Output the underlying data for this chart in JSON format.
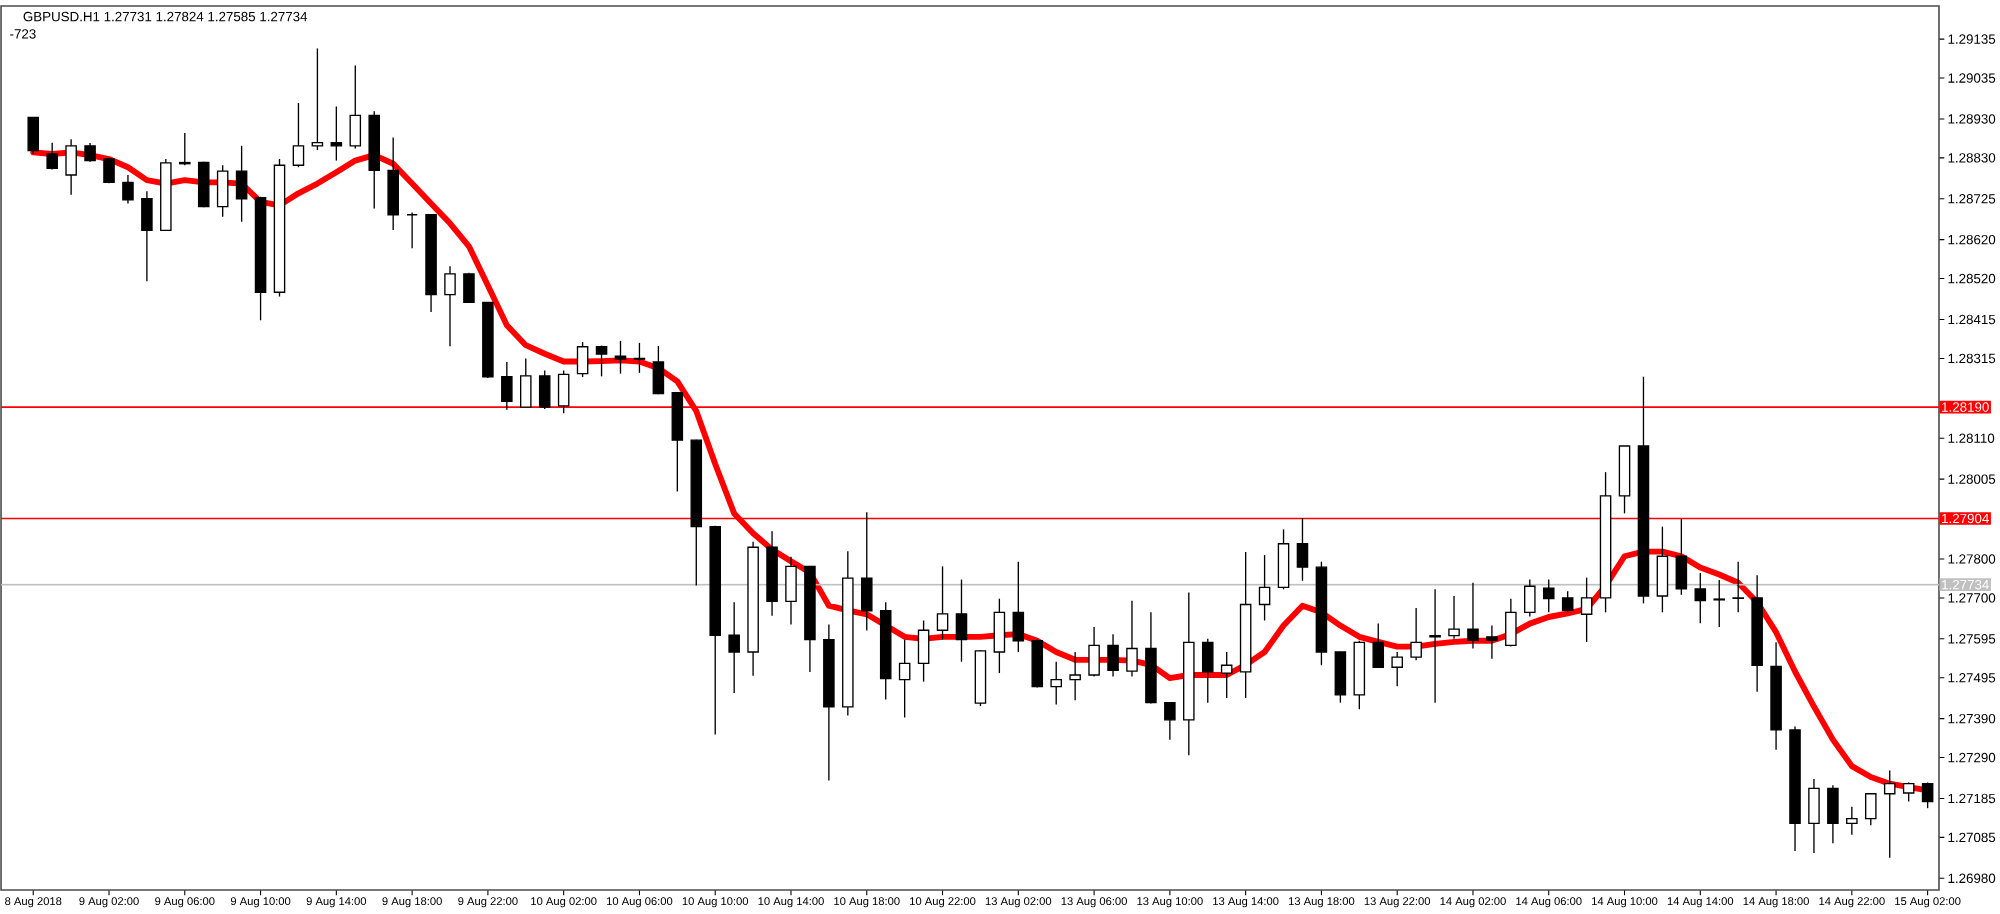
{
  "chart_data": {
    "type": "candlestick",
    "title": "GBPUSD.H1  1.27731 1.27824 1.27585 1.27734",
    "subtitle": "-723",
    "categories": [
      "8 Aug 2018",
      null,
      null,
      null,
      "9 Aug 02:00",
      null,
      null,
      null,
      "9 Aug 06:00",
      null,
      null,
      null,
      "9 Aug 10:00",
      null,
      null,
      null,
      "9 Aug 14:00",
      null,
      null,
      null,
      "9 Aug 18:00",
      null,
      null,
      null,
      "9 Aug 22:00",
      null,
      null,
      null,
      "10 Aug 02:00",
      null,
      null,
      null,
      "10 Aug 06:00",
      null,
      null,
      null,
      "10 Aug 10:00",
      null,
      null,
      null,
      "10 Aug 14:00",
      null,
      null,
      null,
      "10 Aug 18:00",
      null,
      null,
      null,
      "10 Aug 22:00",
      null,
      null,
      null,
      "13 Aug 02:00",
      null,
      null,
      null,
      "13 Aug 06:00",
      null,
      null,
      null,
      "13 Aug 10:00",
      null,
      null,
      null,
      "13 Aug 14:00",
      null,
      null,
      null,
      "13 Aug 18:00",
      null,
      null,
      null,
      "13 Aug 22:00",
      null,
      null,
      null,
      "14 Aug 02:00",
      null,
      null,
      null,
      "14 Aug 06:00",
      null,
      null,
      null,
      "14 Aug 10:00",
      null,
      null,
      null,
      "14 Aug 14:00",
      null,
      null,
      null,
      "14 Aug 18:00",
      null,
      null,
      null,
      "14 Aug 22:00",
      null,
      null,
      null,
      "15 Aug 02:00"
    ],
    "color": "#000000",
    "ohlc": [
      [
        1.28934,
        1.28934,
        1.2884,
        1.28849
      ],
      [
        1.2884,
        1.28869,
        1.288,
        1.28803
      ],
      [
        1.28786,
        1.28878,
        1.28735,
        1.28861
      ],
      [
        1.28861,
        1.28868,
        1.2882,
        1.28823
      ],
      [
        1.28827,
        1.2883,
        1.28765,
        1.28767
      ],
      [
        1.28767,
        1.28786,
        1.28713,
        1.28722
      ],
      [
        1.28725,
        1.28744,
        1.28513,
        1.28644
      ],
      [
        1.28644,
        1.28827,
        1.28642,
        1.28817
      ],
      [
        1.28818,
        1.28894,
        1.28811,
        1.28815
      ],
      [
        1.28818,
        1.2882,
        1.28703,
        1.28705
      ],
      [
        1.28705,
        1.28811,
        1.28679,
        1.28796
      ],
      [
        1.28796,
        1.28861,
        1.28666,
        1.28725
      ],
      [
        1.28728,
        1.2873,
        1.28413,
        1.28485
      ],
      [
        1.28485,
        1.28827,
        1.28474,
        1.28811
      ],
      [
        1.28811,
        1.28971,
        1.28806,
        1.28861
      ],
      [
        1.28861,
        1.29111,
        1.2885,
        1.28869
      ],
      [
        1.28869,
        1.28962,
        1.28823,
        1.28861
      ],
      [
        1.28861,
        1.29067,
        1.28854,
        1.28939
      ],
      [
        1.28939,
        1.2895,
        1.287,
        1.28798
      ],
      [
        1.28798,
        1.28882,
        1.28645,
        1.28684
      ],
      [
        1.28684,
        1.2869,
        1.28598,
        1.28684
      ],
      [
        1.28684,
        1.28686,
        1.28434,
        1.28479
      ],
      [
        1.28479,
        1.28552,
        1.28346,
        1.28532
      ],
      [
        1.28532,
        1.28535,
        1.28457,
        1.28459
      ],
      [
        1.28459,
        1.2846,
        1.28265,
        1.28268
      ],
      [
        1.28268,
        1.28306,
        1.28183,
        1.28205
      ],
      [
        1.2819,
        1.28315,
        1.2819,
        1.2827
      ],
      [
        1.2827,
        1.28284,
        1.28185,
        1.2819
      ],
      [
        1.28193,
        1.28284,
        1.28174,
        1.28274
      ],
      [
        1.28276,
        1.28357,
        1.28267,
        1.28345
      ],
      [
        1.28345,
        1.28348,
        1.28269,
        1.28326
      ],
      [
        1.28321,
        1.2836,
        1.28276,
        1.28313
      ],
      [
        1.28313,
        1.28355,
        1.28278,
        1.28315
      ],
      [
        1.28306,
        1.28347,
        1.28223,
        1.28225
      ],
      [
        1.28227,
        1.28228,
        1.27973,
        1.28105
      ],
      [
        1.28105,
        1.28106,
        1.27732,
        1.27883
      ],
      [
        1.27883,
        1.27885,
        1.27349,
        1.27604
      ],
      [
        1.27604,
        1.27689,
        1.27456,
        1.27561
      ],
      [
        1.27561,
        1.27844,
        1.275,
        1.2783
      ],
      [
        1.2783,
        1.27871,
        1.27654,
        1.27691
      ],
      [
        1.27691,
        1.27806,
        1.27632,
        1.27781
      ],
      [
        1.27781,
        1.27782,
        1.2751,
        1.27593
      ],
      [
        1.27593,
        1.27632,
        1.27231,
        1.2742
      ],
      [
        1.2742,
        1.2782,
        1.27398,
        1.27751
      ],
      [
        1.27751,
        1.2792,
        1.27616,
        1.27667
      ],
      [
        1.27667,
        1.27689,
        1.27439,
        1.27493
      ],
      [
        1.2749,
        1.27593,
        1.27393,
        1.27532
      ],
      [
        1.27532,
        1.27642,
        1.27485,
        1.27617
      ],
      [
        1.27617,
        1.27781,
        1.27593,
        1.27659
      ],
      [
        1.27659,
        1.27747,
        1.27536,
        1.27593
      ],
      [
        1.2743,
        1.27566,
        1.27422,
        1.27564
      ],
      [
        1.27561,
        1.27698,
        1.27507,
        1.27663
      ],
      [
        1.27663,
        1.27793,
        1.27561,
        1.2759
      ],
      [
        1.2759,
        1.27593,
        1.2747,
        1.27472
      ],
      [
        1.27472,
        1.27536,
        1.27426,
        1.2749
      ],
      [
        1.2749,
        1.27561,
        1.27437,
        1.27502
      ],
      [
        1.27502,
        1.27625,
        1.27498,
        1.27578
      ],
      [
        1.27578,
        1.27607,
        1.27498,
        1.27514
      ],
      [
        1.27512,
        1.27693,
        1.27498,
        1.2757
      ],
      [
        1.2757,
        1.27663,
        1.27429,
        1.27431
      ],
      [
        1.27431,
        1.27432,
        1.27336,
        1.27387
      ],
      [
        1.27387,
        1.27714,
        1.27296,
        1.27586
      ],
      [
        1.27586,
        1.27595,
        1.27431,
        1.2751
      ],
      [
        1.27507,
        1.27561,
        1.27443,
        1.27527
      ],
      [
        1.2751,
        1.27818,
        1.27443,
        1.27683
      ],
      [
        1.27683,
        1.2781,
        1.27642,
        1.27727
      ],
      [
        1.27727,
        1.27876,
        1.27722,
        1.27839
      ],
      [
        1.27839,
        1.27905,
        1.27744,
        1.27779
      ],
      [
        1.27779,
        1.27793,
        1.27527,
        1.27561
      ],
      [
        1.27561,
        1.27562,
        1.27431,
        1.27451
      ],
      [
        1.27451,
        1.2759,
        1.27414,
        1.27586
      ],
      [
        1.27586,
        1.27634,
        1.27521,
        1.27522
      ],
      [
        1.27522,
        1.27561,
        1.27473,
        1.27548
      ],
      [
        1.27548,
        1.27674,
        1.2754,
        1.27586
      ],
      [
        1.276,
        1.27722,
        1.27431,
        1.27603
      ],
      [
        1.27603,
        1.27705,
        1.27595,
        1.2762
      ],
      [
        1.2762,
        1.27739,
        1.2757,
        1.27591
      ],
      [
        1.276,
        1.27629,
        1.27544,
        1.27591
      ],
      [
        1.27578,
        1.27698,
        1.27575,
        1.27663
      ],
      [
        1.27663,
        1.27747,
        1.27652,
        1.2773
      ],
      [
        1.27725,
        1.27747,
        1.27663,
        1.27698
      ],
      [
        1.277,
        1.27717,
        1.27663,
        1.27668
      ],
      [
        1.27658,
        1.27752,
        1.27587,
        1.277
      ],
      [
        1.277,
        1.28023,
        1.27663,
        1.27962
      ],
      [
        1.27962,
        1.2809,
        1.27917,
        1.2809
      ],
      [
        1.2809,
        1.28268,
        1.27686,
        1.27705
      ],
      [
        1.27705,
        1.27883,
        1.27663,
        1.27807
      ],
      [
        1.27807,
        1.27903,
        1.27708,
        1.27723
      ],
      [
        1.27723,
        1.27764,
        1.27635,
        1.27693
      ],
      [
        1.27697,
        1.27746,
        1.27625,
        1.27695
      ],
      [
        1.27699,
        1.27793,
        1.27663,
        1.277
      ],
      [
        1.277,
        1.27758,
        1.27459,
        1.27527
      ],
      [
        1.27524,
        1.27586,
        1.2731,
        1.27361
      ],
      [
        1.27361,
        1.2737,
        1.2705,
        1.27121
      ],
      [
        1.27121,
        1.27235,
        1.27045,
        1.27211
      ],
      [
        1.27211,
        1.27219,
        1.2707,
        1.27121
      ],
      [
        1.27121,
        1.27164,
        1.27092,
        1.27133
      ],
      [
        1.27133,
        1.27199,
        1.27116,
        1.27197
      ],
      [
        1.27197,
        1.27257,
        1.27033,
        1.27223
      ],
      [
        1.27199,
        1.27226,
        1.27177,
        1.27223
      ],
      [
        1.27223,
        1.27226,
        1.2716,
        1.27177
      ]
    ],
    "series": [
      {
        "type": "line",
        "color": "#ff0000",
        "values": [
          1.28844,
          1.2884,
          1.28844,
          1.28837,
          1.28827,
          1.28806,
          1.28773,
          1.28764,
          1.28773,
          1.28767,
          1.28767,
          1.28764,
          1.28717,
          1.28708,
          1.28739,
          1.28764,
          1.28793,
          1.28823,
          1.28837,
          1.28815,
          1.28764,
          1.28713,
          1.28662,
          1.28603,
          1.28502,
          1.284,
          1.28349,
          1.28327,
          1.28307,
          1.28307,
          1.28308,
          1.2831,
          1.28307,
          1.2829,
          1.28256,
          1.2818,
          1.28044,
          1.27917,
          1.27866,
          1.27824,
          1.27794,
          1.27765,
          1.2768,
          1.27668,
          1.27658,
          1.27629,
          1.276,
          1.27595,
          1.276,
          1.276,
          1.276,
          1.27604,
          1.27607,
          1.2759,
          1.27561,
          1.27541,
          1.27541,
          1.27541,
          1.27539,
          1.27528,
          1.27494,
          1.27502,
          1.27502,
          1.27502,
          1.27528,
          1.27561,
          1.27629,
          1.2768,
          1.27663,
          1.27629,
          1.276,
          1.27587,
          1.27575,
          1.27575,
          1.27582,
          1.27587,
          1.2759,
          1.2759,
          1.27607,
          1.27634,
          1.27651,
          1.2766,
          1.27672,
          1.27731,
          1.27807,
          1.27819,
          1.27819,
          1.27807,
          1.27778,
          1.2776,
          1.27739,
          1.27689,
          1.27612,
          1.27511,
          1.27421,
          1.27336,
          1.27268,
          1.2724,
          1.27223,
          1.27214,
          1.27206
        ]
      }
    ],
    "ylim": [
      1.2695,
      1.2922
    ],
    "yticks": [
      1.29135,
      1.29035,
      {
        "value": 1.2893,
        "label": "1.28930"
      },
      {
        "value": 1.2883,
        "label": "1.28830"
      },
      1.28725,
      {
        "value": 1.2862,
        "label": "1.28620"
      },
      {
        "value": 1.2852,
        "label": "1.28520"
      },
      1.28415,
      1.28315,
      {
        "value": 1.2811,
        "label": "1.28110"
      },
      1.28005,
      {
        "value": 1.278,
        "label": "1.27800"
      },
      {
        "value": 1.277,
        "label": "1.27700"
      },
      1.27595,
      1.27495,
      {
        "value": 1.2739,
        "label": "1.27390"
      },
      {
        "value": 1.2729,
        "label": "1.27290"
      },
      1.27185,
      1.27085,
      {
        "value": 1.2698,
        "label": "1.26980"
      }
    ],
    "ref_lines": [
      {
        "axis": "y",
        "value": 1.2819,
        "label": "1.28190",
        "color": "#ff0000"
      },
      {
        "axis": "y",
        "value": 1.27904,
        "label": "1.27904",
        "color": "#ff0000"
      },
      {
        "axis": "y",
        "value": 1.27734,
        "label": "1.27734",
        "color": "#c0c0c0"
      }
    ]
  }
}
